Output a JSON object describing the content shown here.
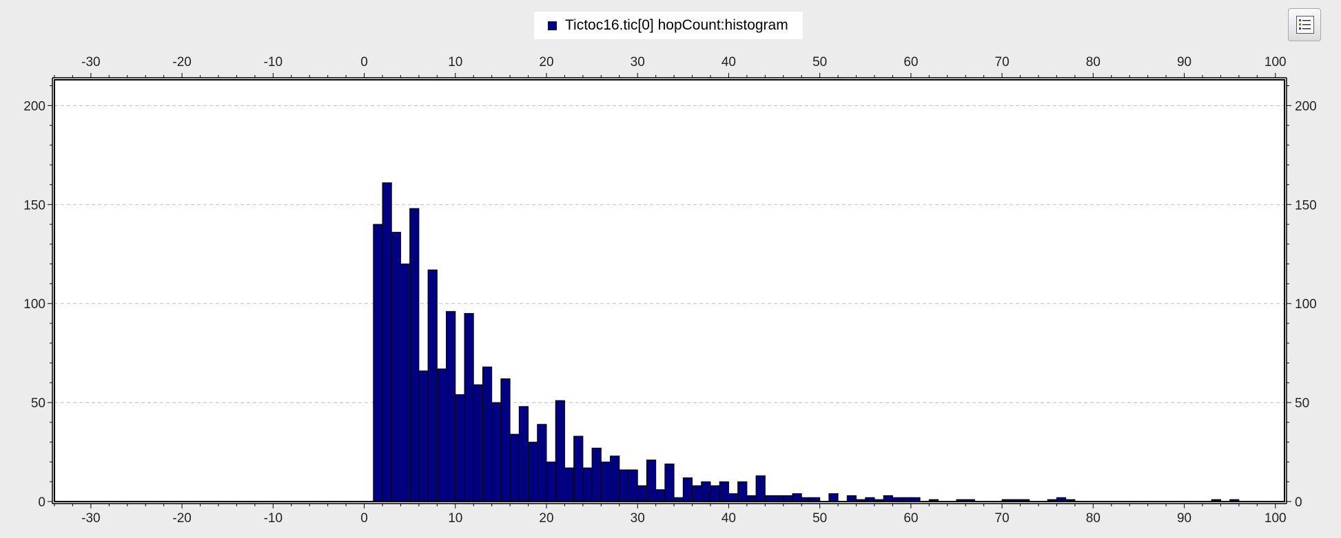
{
  "legend": {
    "label": "Tictoc16.tic[0] hopCount:histogram",
    "swatch_color": "#000080"
  },
  "toolbar": {
    "options_icon": "legend-list-icon"
  },
  "colors": {
    "bar_fill": "#000080",
    "bar_stroke": "#000000",
    "plot_background": "#ffffff",
    "page_background": "#ececec",
    "grid": "#c8c8c8"
  },
  "chart_data": {
    "type": "bar",
    "title": "",
    "xlabel": "",
    "ylabel": "",
    "xlim": [
      -34,
      101
    ],
    "ylim": [
      0,
      213
    ],
    "x_ticks": [
      -30,
      -20,
      -10,
      0,
      10,
      20,
      30,
      40,
      50,
      60,
      70,
      80,
      90,
      100
    ],
    "y_ticks": [
      0,
      50,
      100,
      150,
      200
    ],
    "grid": "horizontal dashed",
    "bin_width": 1,
    "series": [
      {
        "name": "Tictoc16.tic[0] hopCount:histogram",
        "bins": [
          {
            "x": 1,
            "y": 140
          },
          {
            "x": 2,
            "y": 161
          },
          {
            "x": 3,
            "y": 136
          },
          {
            "x": 4,
            "y": 120
          },
          {
            "x": 5,
            "y": 148
          },
          {
            "x": 6,
            "y": 66
          },
          {
            "x": 7,
            "y": 117
          },
          {
            "x": 8,
            "y": 67
          },
          {
            "x": 9,
            "y": 96
          },
          {
            "x": 10,
            "y": 54
          },
          {
            "x": 11,
            "y": 95
          },
          {
            "x": 12,
            "y": 59
          },
          {
            "x": 13,
            "y": 68
          },
          {
            "x": 14,
            "y": 50
          },
          {
            "x": 15,
            "y": 62
          },
          {
            "x": 16,
            "y": 34
          },
          {
            "x": 17,
            "y": 48
          },
          {
            "x": 18,
            "y": 30
          },
          {
            "x": 19,
            "y": 39
          },
          {
            "x": 20,
            "y": 20
          },
          {
            "x": 21,
            "y": 51
          },
          {
            "x": 22,
            "y": 17
          },
          {
            "x": 23,
            "y": 33
          },
          {
            "x": 24,
            "y": 17
          },
          {
            "x": 25,
            "y": 27
          },
          {
            "x": 26,
            "y": 20
          },
          {
            "x": 27,
            "y": 23
          },
          {
            "x": 28,
            "y": 16
          },
          {
            "x": 29,
            "y": 16
          },
          {
            "x": 30,
            "y": 8
          },
          {
            "x": 31,
            "y": 21
          },
          {
            "x": 32,
            "y": 6
          },
          {
            "x": 33,
            "y": 19
          },
          {
            "x": 34,
            "y": 2
          },
          {
            "x": 35,
            "y": 12
          },
          {
            "x": 36,
            "y": 8
          },
          {
            "x": 37,
            "y": 10
          },
          {
            "x": 38,
            "y": 8
          },
          {
            "x": 39,
            "y": 10
          },
          {
            "x": 40,
            "y": 4
          },
          {
            "x": 41,
            "y": 10
          },
          {
            "x": 42,
            "y": 3
          },
          {
            "x": 43,
            "y": 13
          },
          {
            "x": 44,
            "y": 3
          },
          {
            "x": 45,
            "y": 3
          },
          {
            "x": 46,
            "y": 3
          },
          {
            "x": 47,
            "y": 4
          },
          {
            "x": 48,
            "y": 2
          },
          {
            "x": 49,
            "y": 2
          },
          {
            "x": 51,
            "y": 4
          },
          {
            "x": 53,
            "y": 3
          },
          {
            "x": 54,
            "y": 1
          },
          {
            "x": 55,
            "y": 2
          },
          {
            "x": 56,
            "y": 1
          },
          {
            "x": 57,
            "y": 3
          },
          {
            "x": 58,
            "y": 2
          },
          {
            "x": 59,
            "y": 2
          },
          {
            "x": 60,
            "y": 2
          },
          {
            "x": 62,
            "y": 1
          },
          {
            "x": 65,
            "y": 1
          },
          {
            "x": 66,
            "y": 1
          },
          {
            "x": 70,
            "y": 1
          },
          {
            "x": 71,
            "y": 1
          },
          {
            "x": 72,
            "y": 1
          },
          {
            "x": 75,
            "y": 1
          },
          {
            "x": 76,
            "y": 2
          },
          {
            "x": 77,
            "y": 1
          },
          {
            "x": 93,
            "y": 1
          },
          {
            "x": 95,
            "y": 1
          }
        ]
      }
    ]
  }
}
